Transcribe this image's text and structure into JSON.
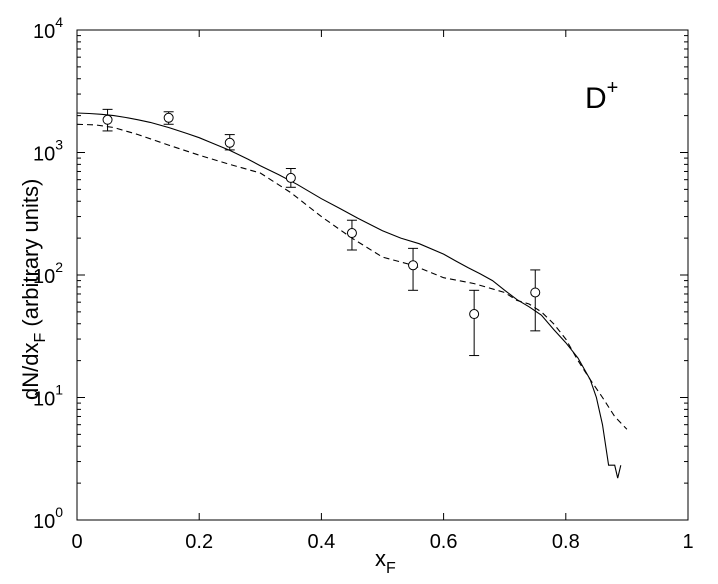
{
  "chart_data": {
    "type": "line",
    "title": "",
    "annotation": "D",
    "annotation_sup": "+",
    "xlabel_main": "x",
    "xlabel_sub": "F",
    "ylabel_main": "dN/dx",
    "ylabel_sub": "F",
    "ylabel_suffix": " (arbitrary units)",
    "xlim": [
      0,
      1
    ],
    "ylim": [
      1,
      10000
    ],
    "yscale": "log",
    "grid": false,
    "x_ticks": [
      {
        "value": 0,
        "label": "0"
      },
      {
        "value": 0.2,
        "label": "0.2"
      },
      {
        "value": 0.4,
        "label": "0.4"
      },
      {
        "value": 0.6,
        "label": "0.6"
      },
      {
        "value": 0.8,
        "label": "0.8"
      },
      {
        "value": 1,
        "label": "1"
      }
    ],
    "y_ticks": [
      {
        "value": 1,
        "base": "10",
        "exp": "0"
      },
      {
        "value": 10,
        "base": "10",
        "exp": "1"
      },
      {
        "value": 100,
        "base": "10",
        "exp": "2"
      },
      {
        "value": 1000,
        "base": "10",
        "exp": "3"
      },
      {
        "value": 10000,
        "base": "10",
        "exp": "4"
      }
    ],
    "series": [
      {
        "style": "solid",
        "color": "#000000",
        "x": [
          0,
          0.02,
          0.04,
          0.06,
          0.08,
          0.1,
          0.12,
          0.15,
          0.18,
          0.2,
          0.22,
          0.25,
          0.28,
          0.3,
          0.33,
          0.36,
          0.4,
          0.43,
          0.46,
          0.5,
          0.53,
          0.56,
          0.6,
          0.62,
          0.64,
          0.66,
          0.68,
          0.7,
          0.72,
          0.74,
          0.76,
          0.78,
          0.8,
          0.82,
          0.84,
          0.85,
          0.86,
          0.87,
          0.88,
          0.885,
          0.89
        ],
        "y": [
          2100,
          2080,
          2050,
          2000,
          1930,
          1850,
          1760,
          1600,
          1430,
          1320,
          1200,
          1040,
          880,
          780,
          660,
          550,
          420,
          350,
          290,
          230,
          200,
          180,
          148,
          130,
          115,
          102,
          90,
          75,
          63,
          55,
          47,
          36,
          28,
          21,
          14,
          10,
          6,
          2.8,
          2.8,
          2.2,
          2.8
        ]
      },
      {
        "style": "dashed",
        "color": "#000000",
        "x": [
          0,
          0.03,
          0.06,
          0.1,
          0.15,
          0.2,
          0.25,
          0.3,
          0.35,
          0.4,
          0.45,
          0.5,
          0.55,
          0.6,
          0.65,
          0.7,
          0.72,
          0.74,
          0.76,
          0.78,
          0.8,
          0.82,
          0.84,
          0.86,
          0.88,
          0.9
        ],
        "y": [
          1700,
          1680,
          1600,
          1400,
          1150,
          950,
          800,
          680,
          470,
          300,
          200,
          140,
          120,
          95,
          85,
          72,
          62,
          58,
          50,
          40,
          30,
          20,
          14,
          10,
          7,
          5.5
        ]
      }
    ],
    "points": {
      "marker": "circle",
      "x": [
        0.05,
        0.15,
        0.25,
        0.35,
        0.45,
        0.55,
        0.65,
        0.75
      ],
      "y": [
        1850,
        1920,
        1200,
        620,
        220,
        120,
        48,
        72
      ],
      "y_low": [
        1500,
        1700,
        1050,
        520,
        160,
        75,
        22,
        35
      ],
      "y_high": [
        2250,
        2150,
        1400,
        740,
        280,
        165,
        75,
        110
      ]
    }
  }
}
